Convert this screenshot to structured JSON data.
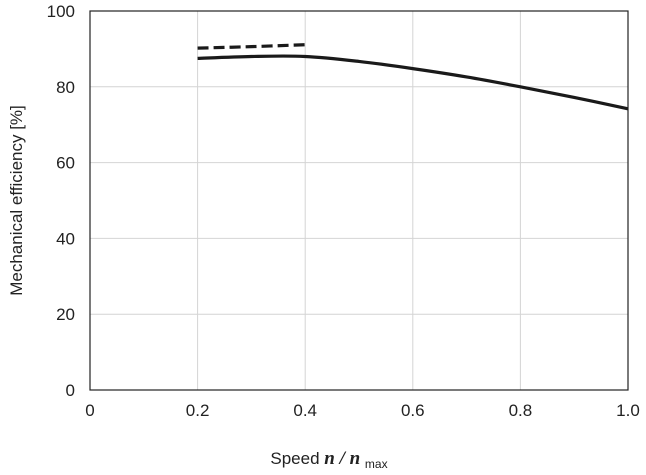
{
  "chart_data": {
    "type": "line",
    "xlabel": {
      "prefix": "Speed ",
      "var": "n",
      "slash": "/",
      "var2": "n",
      "subscript": "max"
    },
    "ylabel": "Mechanical efficiency [%]",
    "xlim": [
      0,
      1.0
    ],
    "ylim": [
      0,
      100
    ],
    "x_ticks": [
      {
        "value": 0,
        "label": "0"
      },
      {
        "value": 0.2,
        "label": "0.2"
      },
      {
        "value": 0.4,
        "label": "0.4"
      },
      {
        "value": 0.6,
        "label": "0.6"
      },
      {
        "value": 0.8,
        "label": "0.8"
      },
      {
        "value": 1.0,
        "label": "1.0"
      }
    ],
    "y_ticks": [
      {
        "value": 0,
        "label": "0"
      },
      {
        "value": 20,
        "label": "20"
      },
      {
        "value": 40,
        "label": "40"
      },
      {
        "value": 60,
        "label": "60"
      },
      {
        "value": 80,
        "label": "80"
      },
      {
        "value": 100,
        "label": "100"
      }
    ],
    "grid": true,
    "legend": "none",
    "series": [
      {
        "style": "solid",
        "color": "#1a1a1a",
        "x": [
          0.2,
          0.3,
          0.4,
          0.5,
          0.6,
          0.7,
          0.8,
          0.9,
          1.0
        ],
        "y": [
          87.5,
          88,
          88,
          86.7,
          84.8,
          82.6,
          80,
          77.2,
          74.2
        ]
      },
      {
        "style": "dashed",
        "color": "#1a1a1a",
        "x": [
          0.2,
          0.3,
          0.4
        ],
        "y": [
          90.2,
          90.6,
          91.1
        ]
      }
    ]
  }
}
